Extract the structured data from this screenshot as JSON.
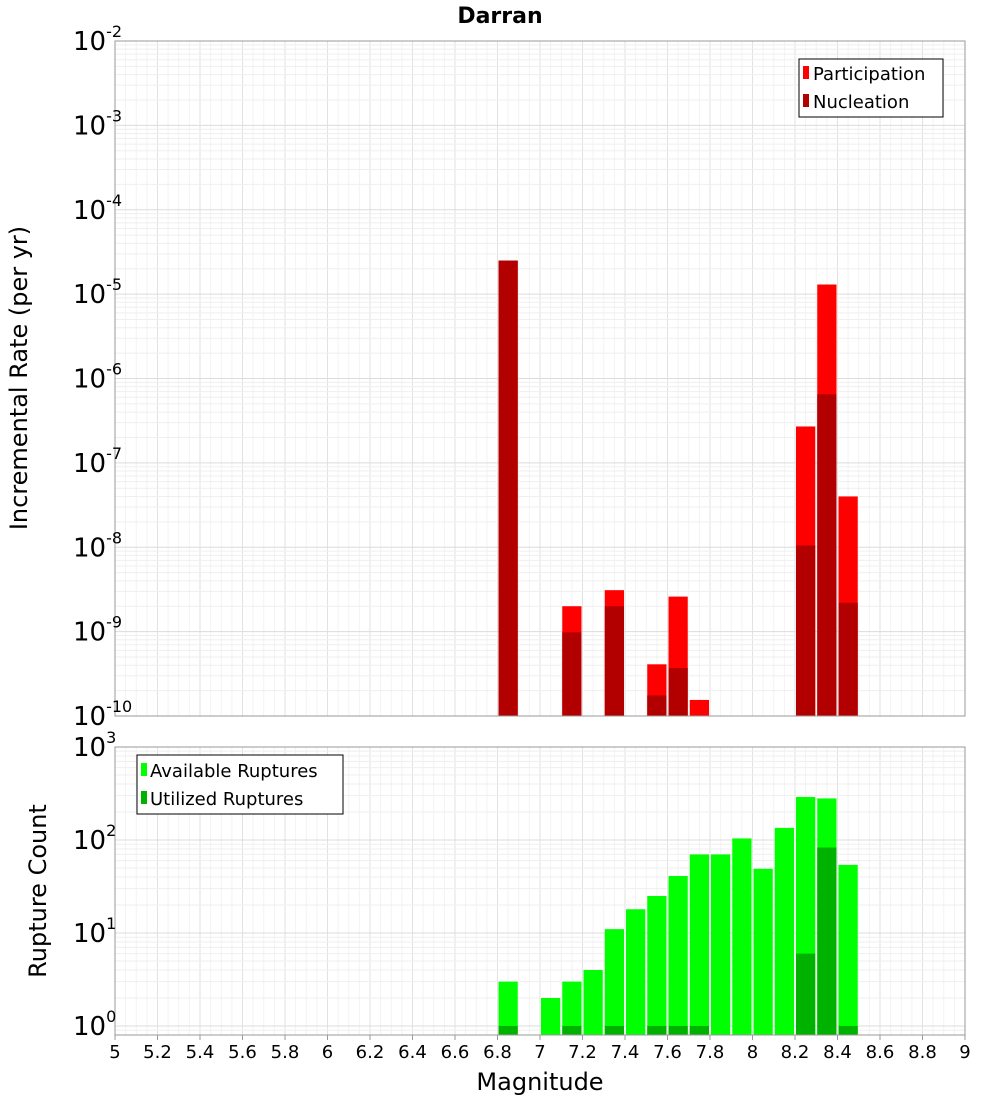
{
  "chart_data": [
    {
      "type": "bar",
      "title": "Darran",
      "xlabel": "",
      "ylabel": "Incremental Rate (per yr)",
      "xlim": [
        5,
        9
      ],
      "ylim": [
        1e-10,
        0.01
      ],
      "yscale": "log",
      "grid": true,
      "legend_position": "top-right",
      "x_ticks": [
        "5",
        "5.2",
        "5.4",
        "5.6",
        "5.8",
        "6",
        "6.2",
        "6.4",
        "6.6",
        "6.8",
        "7",
        "7.2",
        "7.4",
        "7.6",
        "7.8",
        "8",
        "8.2",
        "8.4",
        "8.6",
        "8.8",
        "9"
      ],
      "y_tick_exponents": [
        "-2",
        "-3",
        "-4",
        "-5",
        "-6",
        "-7",
        "-8",
        "-9",
        "-10"
      ],
      "x": [
        6.85,
        7.15,
        7.35,
        7.55,
        7.65,
        7.75,
        8.25,
        8.35,
        8.45
      ],
      "series": [
        {
          "name": "Participation",
          "color": "#ff0000",
          "values": [
            2.5e-05,
            2e-09,
            3.1e-09,
            4.1e-10,
            2.6e-09,
            1.55e-10,
            2.7e-07,
            1.3e-05,
            4e-08
          ]
        },
        {
          "name": "Nucleation",
          "color": "#b20000",
          "values": [
            2.5e-05,
            9.8e-10,
            2e-09,
            1.75e-10,
            3.7e-10,
            null,
            1.05e-08,
            6.5e-07,
            2.2e-09
          ]
        }
      ]
    },
    {
      "type": "bar",
      "xlabel": "Magnitude",
      "ylabel": "Rupture Count",
      "xlim": [
        5,
        9
      ],
      "ylim": [
        0.8,
        1000
      ],
      "yscale": "log",
      "grid": true,
      "legend_position": "top-left",
      "y_tick_exponents": [
        "0",
        "1",
        "2",
        "3"
      ],
      "x": [
        6.85,
        7.05,
        7.15,
        7.25,
        7.35,
        7.45,
        7.55,
        7.65,
        7.75,
        7.85,
        7.95,
        8.05,
        8.15,
        8.25,
        8.35,
        8.45
      ],
      "series": [
        {
          "name": "Available Ruptures",
          "color": "#00ff00",
          "values": [
            3,
            2,
            3,
            4,
            11,
            18,
            25,
            41,
            70,
            70,
            104,
            49,
            135,
            290,
            280,
            54
          ]
        },
        {
          "name": "Utilized Ruptures",
          "color": "#00b200",
          "values": [
            1,
            null,
            1,
            null,
            1,
            null,
            1,
            1,
            1,
            null,
            null,
            null,
            null,
            6,
            83,
            1
          ]
        }
      ]
    }
  ]
}
